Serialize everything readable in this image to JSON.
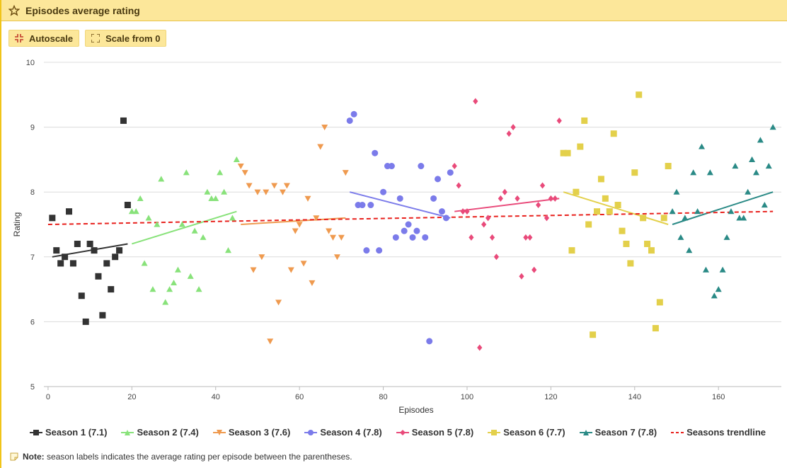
{
  "header": {
    "title": "Episodes average rating",
    "icon": "star-icon"
  },
  "toolbar": {
    "autoscale_label": "Autoscale",
    "scale_from_zero_label": "Scale from 0"
  },
  "note": {
    "label": "Note:",
    "text": "season labels indicates the average rating per episode between the parentheses."
  },
  "chart_data": {
    "type": "scatter",
    "xlabel": "Episodes",
    "ylabel": "Rating",
    "xlim": [
      -1,
      175
    ],
    "ylim": [
      5,
      10
    ],
    "xticks": [
      0,
      20,
      40,
      60,
      80,
      100,
      120,
      140,
      160
    ],
    "yticks": [
      5,
      6,
      7,
      8,
      9,
      10
    ],
    "grid": "horizontal",
    "legend_position": "bottom",
    "series": [
      {
        "name": "Season 1 (7.1)",
        "color": "#333333",
        "marker": "square",
        "trend": [
          [
            1,
            7.0
          ],
          [
            19,
            7.2
          ]
        ],
        "points": [
          [
            1,
            7.6
          ],
          [
            2,
            7.1
          ],
          [
            3,
            6.9
          ],
          [
            4,
            7.0
          ],
          [
            5,
            7.7
          ],
          [
            6,
            6.9
          ],
          [
            7,
            7.2
          ],
          [
            8,
            6.4
          ],
          [
            9,
            6.0
          ],
          [
            10,
            7.2
          ],
          [
            11,
            7.1
          ],
          [
            12,
            6.7
          ],
          [
            13,
            6.1
          ],
          [
            14,
            6.9
          ],
          [
            15,
            6.5
          ],
          [
            16,
            7.0
          ],
          [
            17,
            7.1
          ],
          [
            18,
            9.1
          ],
          [
            19,
            7.8
          ]
        ]
      },
      {
        "name": "Season 2 (7.4)",
        "color": "#88e27a",
        "marker": "triangle-up",
        "trend": [
          [
            20,
            7.2
          ],
          [
            45,
            7.7
          ]
        ],
        "points": [
          [
            20,
            7.7
          ],
          [
            21,
            7.7
          ],
          [
            22,
            7.9
          ],
          [
            23,
            6.9
          ],
          [
            24,
            7.6
          ],
          [
            25,
            6.5
          ],
          [
            26,
            7.5
          ],
          [
            27,
            8.2
          ],
          [
            28,
            6.3
          ],
          [
            29,
            6.5
          ],
          [
            30,
            6.6
          ],
          [
            31,
            6.8
          ],
          [
            32,
            7.5
          ],
          [
            33,
            8.3
          ],
          [
            34,
            6.7
          ],
          [
            35,
            7.4
          ],
          [
            36,
            6.5
          ],
          [
            37,
            7.3
          ],
          [
            38,
            8.0
          ],
          [
            39,
            7.9
          ],
          [
            40,
            7.9
          ],
          [
            41,
            8.3
          ],
          [
            42,
            8.0
          ],
          [
            43,
            7.1
          ],
          [
            44,
            7.6
          ],
          [
            45,
            8.5
          ]
        ]
      },
      {
        "name": "Season 3 (7.6)",
        "color": "#ef9a4f",
        "marker": "triangle-down",
        "trend": [
          [
            46,
            7.5
          ],
          [
            71,
            7.6
          ]
        ],
        "points": [
          [
            46,
            8.4
          ],
          [
            47,
            8.3
          ],
          [
            48,
            8.1
          ],
          [
            49,
            6.8
          ],
          [
            50,
            8.0
          ],
          [
            51,
            7.0
          ],
          [
            52,
            8.0
          ],
          [
            53,
            5.7
          ],
          [
            54,
            8.1
          ],
          [
            55,
            6.3
          ],
          [
            56,
            8.0
          ],
          [
            57,
            8.1
          ],
          [
            58,
            6.8
          ],
          [
            59,
            7.4
          ],
          [
            60,
            7.5
          ],
          [
            61,
            6.9
          ],
          [
            62,
            7.9
          ],
          [
            63,
            6.6
          ],
          [
            64,
            7.6
          ],
          [
            65,
            8.7
          ],
          [
            66,
            9.0
          ],
          [
            67,
            7.4
          ],
          [
            68,
            7.3
          ],
          [
            69,
            7.0
          ],
          [
            70,
            7.3
          ],
          [
            71,
            8.3
          ]
        ]
      },
      {
        "name": "Season 4 (7.8)",
        "color": "#7b7bea",
        "marker": "circle",
        "trend": [
          [
            72,
            8.0
          ],
          [
            96,
            7.6
          ]
        ],
        "points": [
          [
            72,
            9.1
          ],
          [
            73,
            9.2
          ],
          [
            74,
            7.8
          ],
          [
            75,
            7.8
          ],
          [
            76,
            7.1
          ],
          [
            77,
            7.8
          ],
          [
            78,
            8.6
          ],
          [
            79,
            7.1
          ],
          [
            80,
            8.0
          ],
          [
            81,
            8.4
          ],
          [
            82,
            8.4
          ],
          [
            83,
            7.3
          ],
          [
            84,
            7.9
          ],
          [
            85,
            7.4
          ],
          [
            86,
            7.5
          ],
          [
            87,
            7.3
          ],
          [
            88,
            7.4
          ],
          [
            89,
            8.4
          ],
          [
            90,
            7.3
          ],
          [
            91,
            5.7
          ],
          [
            92,
            7.9
          ],
          [
            93,
            8.2
          ],
          [
            94,
            7.7
          ],
          [
            95,
            7.6
          ],
          [
            96,
            8.3
          ]
        ]
      },
      {
        "name": "Season 5 (7.8)",
        "color": "#e94a7a",
        "marker": "diamond",
        "trend": [
          [
            97,
            7.7
          ],
          [
            122,
            7.9
          ]
        ],
        "points": [
          [
            97,
            8.4
          ],
          [
            98,
            8.1
          ],
          [
            99,
            7.7
          ],
          [
            100,
            7.7
          ],
          [
            101,
            7.3
          ],
          [
            102,
            9.4
          ],
          [
            103,
            5.6
          ],
          [
            104,
            7.5
          ],
          [
            105,
            7.6
          ],
          [
            106,
            7.3
          ],
          [
            107,
            7.0
          ],
          [
            108,
            7.9
          ],
          [
            109,
            8.0
          ],
          [
            110,
            8.9
          ],
          [
            111,
            9.0
          ],
          [
            112,
            7.9
          ],
          [
            113,
            6.7
          ],
          [
            114,
            7.3
          ],
          [
            115,
            7.3
          ],
          [
            116,
            6.8
          ],
          [
            117,
            7.8
          ],
          [
            118,
            8.1
          ],
          [
            119,
            7.6
          ],
          [
            120,
            7.9
          ],
          [
            121,
            7.9
          ],
          [
            122,
            9.1
          ]
        ]
      },
      {
        "name": "Season 6 (7.7)",
        "color": "#e3d04b",
        "marker": "square",
        "trend": [
          [
            123,
            8.0
          ],
          [
            148,
            7.5
          ]
        ],
        "points": [
          [
            123,
            8.6
          ],
          [
            124,
            8.6
          ],
          [
            125,
            7.1
          ],
          [
            126,
            8.0
          ],
          [
            127,
            8.7
          ],
          [
            128,
            9.1
          ],
          [
            129,
            7.5
          ],
          [
            130,
            5.8
          ],
          [
            131,
            7.7
          ],
          [
            132,
            8.2
          ],
          [
            133,
            7.9
          ],
          [
            134,
            7.7
          ],
          [
            135,
            8.9
          ],
          [
            136,
            7.8
          ],
          [
            137,
            7.4
          ],
          [
            138,
            7.2
          ],
          [
            139,
            6.9
          ],
          [
            140,
            8.3
          ],
          [
            141,
            9.5
          ],
          [
            142,
            7.6
          ],
          [
            143,
            7.2
          ],
          [
            144,
            7.1
          ],
          [
            145,
            5.9
          ],
          [
            146,
            6.3
          ],
          [
            147,
            7.6
          ],
          [
            148,
            8.4
          ]
        ]
      },
      {
        "name": "Season 7 (7.8)",
        "color": "#2a8a86",
        "marker": "triangle-up",
        "trend": [
          [
            149,
            7.5
          ],
          [
            173,
            8.0
          ]
        ],
        "points": [
          [
            149,
            7.7
          ],
          [
            150,
            8.0
          ],
          [
            151,
            7.3
          ],
          [
            152,
            7.6
          ],
          [
            153,
            7.1
          ],
          [
            154,
            8.3
          ],
          [
            155,
            7.7
          ],
          [
            156,
            8.7
          ],
          [
            157,
            6.8
          ],
          [
            158,
            8.3
          ],
          [
            159,
            6.4
          ],
          [
            160,
            6.5
          ],
          [
            161,
            6.8
          ],
          [
            162,
            7.3
          ],
          [
            163,
            7.7
          ],
          [
            164,
            8.4
          ],
          [
            165,
            7.6
          ],
          [
            166,
            7.6
          ],
          [
            167,
            8.0
          ],
          [
            168,
            8.5
          ],
          [
            169,
            8.3
          ],
          [
            170,
            8.8
          ],
          [
            171,
            7.8
          ],
          [
            172,
            8.4
          ],
          [
            173,
            9.0
          ]
        ]
      }
    ],
    "overall_trend": {
      "name": "Seasons trendline",
      "color": "#e8211d",
      "line": [
        [
          0,
          7.5
        ],
        [
          173,
          7.7
        ]
      ]
    }
  }
}
